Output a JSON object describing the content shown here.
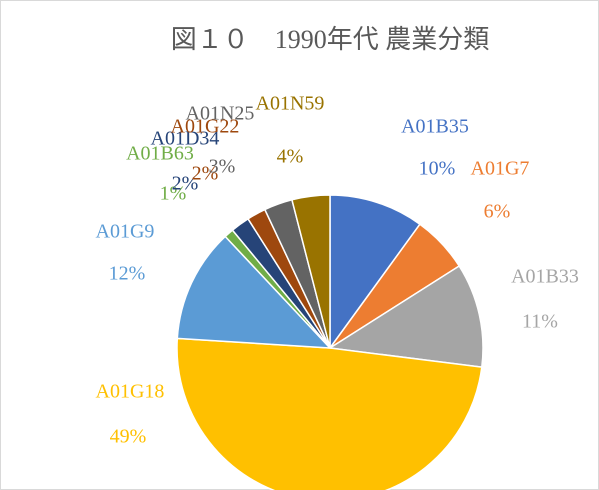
{
  "chart_data": {
    "type": "pie",
    "title": "図１０　1990年代 農業分類",
    "categories": [
      "A01B35",
      "A01G7",
      "A01B33",
      "A01G18",
      "A01G9",
      "A01B63",
      "A01D34",
      "A01G22",
      "A01N25",
      "A01N59"
    ],
    "values": [
      10,
      6,
      11,
      49,
      12,
      1,
      2,
      2,
      3,
      4
    ],
    "value_labels": [
      "10%",
      "6%",
      "11%",
      "49%",
      "12%",
      "1%",
      "2%",
      "2%",
      "3%",
      "4%"
    ],
    "colors": [
      "#4472c4",
      "#ed7d31",
      "#a5a5a5",
      "#ffc000",
      "#5b9bd5",
      "#70ad47",
      "#264478",
      "#9e480e",
      "#636363",
      "#997300"
    ]
  }
}
